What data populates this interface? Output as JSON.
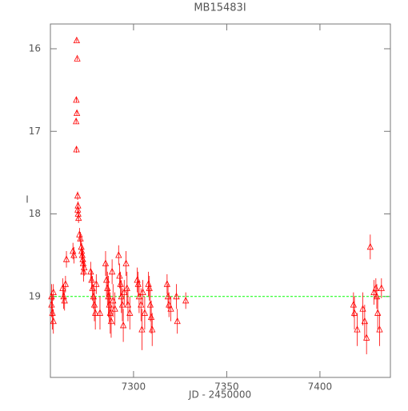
{
  "chart_data": {
    "type": "scatter",
    "title": "MB15483I",
    "x_label": "JD - 2450000",
    "y_label": "I",
    "xlim": [
      7255.4,
      7437.8
    ],
    "ylim": [
      19.98,
      15.7
    ],
    "xticks": [
      7300,
      7350,
      7400
    ],
    "yticks": [
      16,
      17,
      18,
      19
    ],
    "reference_line": 19.0,
    "reference_color": "#00ff00",
    "series": [
      {
        "color": "#ff0000",
        "x": [
          7256,
          7256,
          7256.5,
          7257,
          7257,
          7262,
          7262.5,
          7263,
          7263.5,
          7264,
          7267.5,
          7268,
          7269.5,
          7269.8,
          7269.3,
          7269.6,
          7269.2,
          7269.4,
          7270,
          7270.2,
          7270.1,
          7270.3,
          7270.5,
          7271,
          7271.5,
          7272,
          7272.2,
          7272.5,
          7272.8,
          7273,
          7273.2,
          7273.5,
          7277,
          7277.5,
          7278,
          7278.5,
          7279,
          7279.5,
          7280,
          7282,
          7285,
          7285.5,
          7286,
          7286.5,
          7287,
          7287.5,
          7288,
          7288.5,
          7289,
          7290,
          7292,
          7292.5,
          7293,
          7293.5,
          7294,
          7294.5,
          7295,
          7296,
          7296.5,
          7297,
          7298,
          7302,
          7302.5,
          7303,
          7304,
          7304.5,
          7305,
          7306,
          7308,
          7308.5,
          7309,
          7309.5,
          7310,
          7318,
          7318.5,
          7319,
          7320,
          7323,
          7323.5,
          7328,
          7418,
          7418.5,
          7420,
          7423,
          7424,
          7425,
          7427,
          7429,
          7430,
          7430.5,
          7431,
          7432,
          7433
        ],
        "values": [
          19.0,
          19.1,
          19.2,
          19.3,
          18.95,
          18.9,
          19.0,
          19.05,
          18.85,
          18.55,
          18.45,
          18.5,
          15.9,
          16.12,
          16.62,
          16.78,
          16.88,
          17.22,
          17.78,
          17.9,
          17.95,
          18.0,
          18.05,
          18.25,
          18.3,
          18.4,
          18.45,
          18.5,
          18.55,
          18.6,
          18.7,
          18.65,
          18.7,
          18.8,
          18.9,
          19.0,
          19.1,
          19.2,
          18.85,
          19.2,
          18.6,
          18.8,
          18.9,
          19.0,
          19.1,
          19.2,
          19.3,
          18.7,
          19.05,
          19.15,
          18.5,
          18.75,
          18.85,
          19.0,
          19.1,
          19.35,
          18.95,
          18.6,
          18.9,
          19.1,
          19.2,
          18.8,
          18.85,
          19.0,
          19.1,
          19.4,
          18.95,
          19.2,
          18.85,
          18.9,
          19.1,
          19.25,
          19.4,
          18.85,
          19.0,
          19.1,
          19.15,
          19.0,
          19.3,
          19.05,
          19.1,
          19.2,
          19.4,
          19.15,
          19.3,
          19.5,
          18.4,
          18.95,
          18.9,
          19.0,
          19.2,
          19.4,
          18.9
        ],
        "errors": [
          0.15,
          0.15,
          0.2,
          0.15,
          0.1,
          0.12,
          0.15,
          0.12,
          0.1,
          0.1,
          0.1,
          0.1,
          0.02,
          0.02,
          0.03,
          0.03,
          0.03,
          0.04,
          0.05,
          0.05,
          0.05,
          0.06,
          0.06,
          0.08,
          0.08,
          0.1,
          0.1,
          0.1,
          0.1,
          0.12,
          0.12,
          0.1,
          0.12,
          0.12,
          0.15,
          0.15,
          0.2,
          0.2,
          0.12,
          0.2,
          0.15,
          0.2,
          0.2,
          0.25,
          0.2,
          0.25,
          0.2,
          0.15,
          0.2,
          0.2,
          0.12,
          0.15,
          0.15,
          0.2,
          0.2,
          0.2,
          0.15,
          0.15,
          0.2,
          0.2,
          0.2,
          0.15,
          0.15,
          0.2,
          0.2,
          0.25,
          0.15,
          0.2,
          0.15,
          0.15,
          0.2,
          0.2,
          0.2,
          0.12,
          0.15,
          0.15,
          0.15,
          0.15,
          0.15,
          0.1,
          0.15,
          0.2,
          0.2,
          0.2,
          0.2,
          0.2,
          0.15,
          0.15,
          0.12,
          0.15,
          0.2,
          0.2,
          0.12
        ]
      }
    ]
  }
}
